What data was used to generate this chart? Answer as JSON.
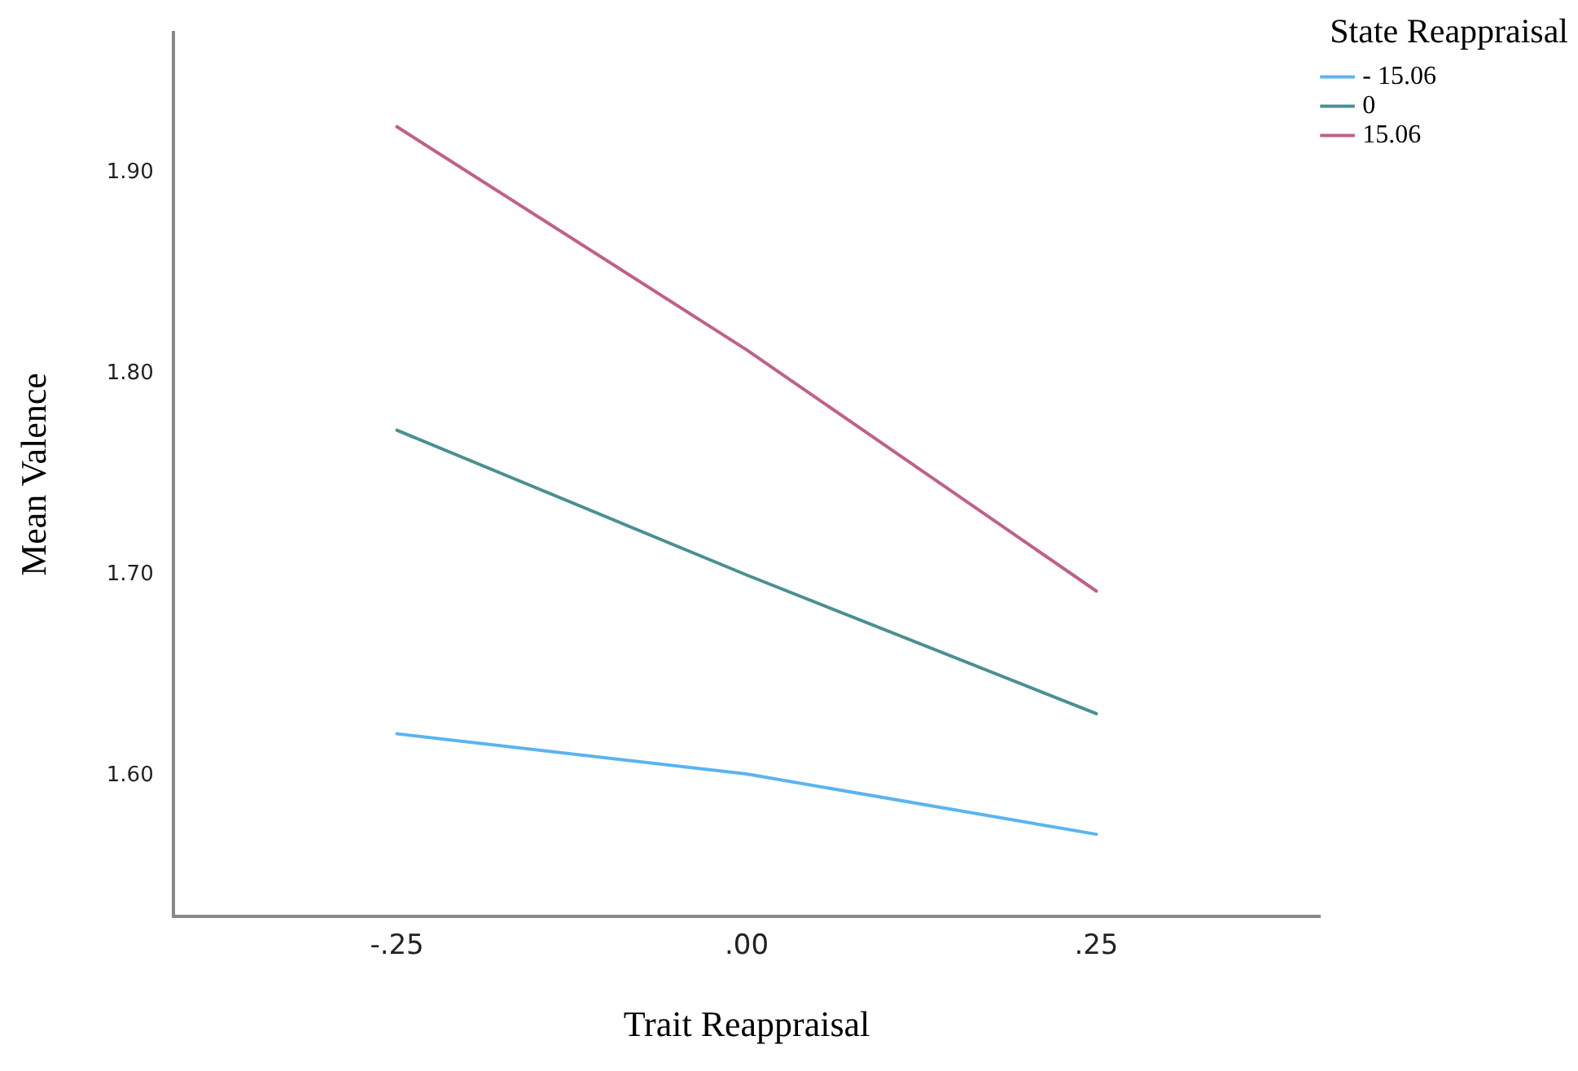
{
  "chart_data": {
    "type": "line",
    "xlabel": "Trait Reappraisal",
    "ylabel": "Mean Valence",
    "legend_title": "State Reappraisal",
    "legend": "top right",
    "grid": false,
    "marker": "none",
    "line_style": "solid",
    "x": [
      -0.25,
      0,
      0.25
    ],
    "xlim": [
      -0.41,
      0.41
    ],
    "xticks": [
      {
        "value": -0.25,
        "label": "-.25"
      },
      {
        "value": 0,
        "label": ".00"
      },
      {
        "value": 0.25,
        "label": ".25"
      }
    ],
    "ylim": [
      1.53,
      1.97
    ],
    "yticks": [
      {
        "value": 1.6,
        "label": "1.60"
      },
      {
        "value": 1.7,
        "label": "1.70"
      },
      {
        "value": 1.8,
        "label": "1.80"
      },
      {
        "value": 1.9,
        "label": "1.90"
      }
    ],
    "series": [
      {
        "name": "- 15.06",
        "color": "#5ab4f0",
        "values": [
          1.621,
          1.601,
          1.571
        ]
      },
      {
        "name": "0",
        "color": "#4a9090",
        "values": [
          1.772,
          1.7,
          1.631
        ]
      },
      {
        "name": "15.06",
        "color": "#c0608a",
        "values": [
          1.923,
          1.812,
          1.692
        ]
      }
    ]
  }
}
